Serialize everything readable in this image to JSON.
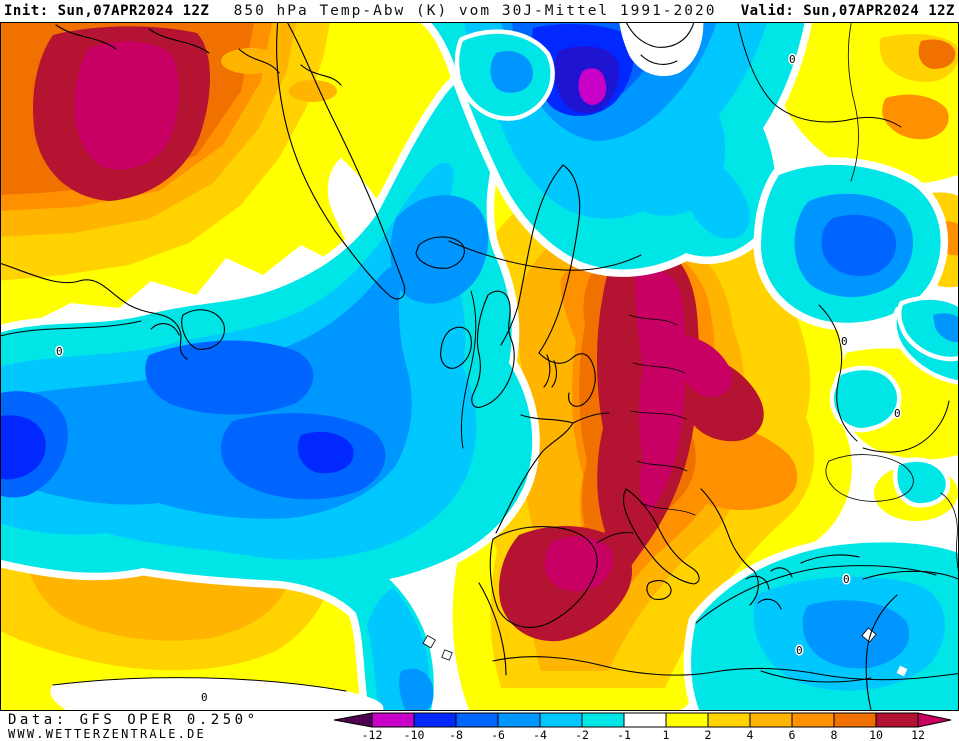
{
  "header": {
    "init": "Init: Sun,07APR2024 12Z",
    "title": "850 hPa Temp-Abw (K) vom 30J-Mittel 1991-2020",
    "valid": "Valid: Sun,07APR2024 12Z"
  },
  "footer": {
    "data_source": "Data: GFS OPER 0.250°",
    "website": "WWW.WETTERZENTRALE.DE"
  },
  "legend": {
    "tick_labels": [
      "-12",
      "-10",
      "-8",
      "-6",
      "-4",
      "-2",
      "-1",
      "1",
      "2",
      "4",
      "6",
      "8",
      "10",
      "12"
    ],
    "segment_colors": [
      "#c800c8",
      "#0028ff",
      "#0064ff",
      "#0096ff",
      "#00c8ff",
      "#00e6e6",
      "#ffffff",
      "#ffff00",
      "#ffd200",
      "#ffb400",
      "#ff9000",
      "#f07000",
      "#b41432"
    ],
    "arrow_left_color": "#500050",
    "arrow_right_color": "#c80064"
  },
  "map": {
    "contour_label": "0"
  },
  "palette": {
    "white": "#ffffff",
    "yellow": "#ffff00",
    "gold": "#ffd200",
    "amber": "#ffb400",
    "orange": "#ff9000",
    "darkOrange": "#f07000",
    "darkRed": "#b41432",
    "warmMagenta": "#c80064",
    "cyan": "#00e6e6",
    "sky": "#00c8ff",
    "blue": "#0096ff",
    "deepBlue": "#0064ff",
    "vividBlue": "#0028ff",
    "indigo": "#1e14d2",
    "coldMagenta": "#c800c8",
    "purple": "#500050"
  }
}
